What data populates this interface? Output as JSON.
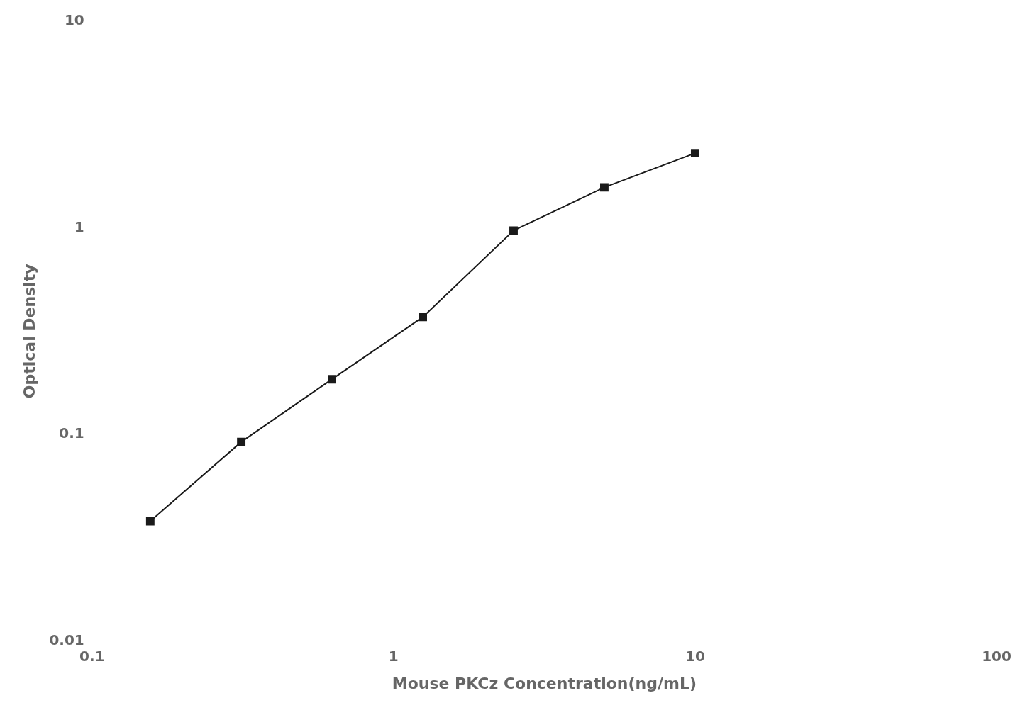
{
  "chart_data": {
    "type": "line",
    "x": [
      0.156,
      0.3125,
      0.625,
      1.25,
      2.5,
      5.0,
      10.0
    ],
    "values": [
      0.038,
      0.092,
      0.185,
      0.37,
      0.97,
      1.57,
      2.3
    ],
    "xlabel": "Mouse PKCz Concentration(ng/mL)",
    "ylabel": "Optical Density",
    "xlim": [
      0.1,
      100
    ],
    "ylim": [
      0.01,
      10
    ],
    "xticks": [
      0.1,
      1,
      10,
      100
    ],
    "yticks": [
      0.01,
      0.1,
      1,
      10
    ],
    "log": true,
    "grid": false,
    "color": "#1a1a1a",
    "marker": "square",
    "line_style": "solid"
  }
}
